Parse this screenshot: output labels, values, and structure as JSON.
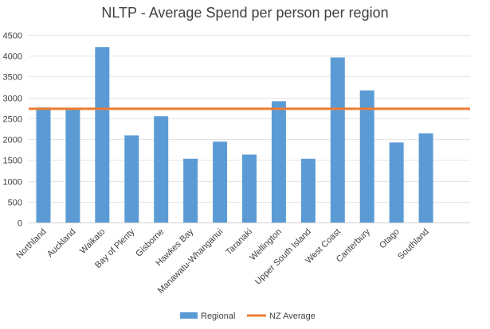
{
  "chart_data": {
    "type": "bar",
    "title": "NLTP - Average Spend per person per region",
    "categories": [
      "Northland",
      "Auckland",
      "Waikato",
      "Bay of Plenty",
      "Gisborne",
      "Hawkes Bay",
      "Manawatu-Whanganui",
      "Taranaki",
      "Wellington",
      "Upper South Island",
      "West Coast",
      "Canterbury",
      "Otago",
      "Southland"
    ],
    "series": [
      {
        "name": "Regional",
        "type": "bar",
        "color": "#5B9BD5",
        "values": [
          2760,
          2740,
          4210,
          2090,
          2550,
          1530,
          1940,
          1630,
          2910,
          1530,
          3960,
          3170,
          1920,
          2140
        ]
      },
      {
        "name": "NZ Average",
        "type": "line",
        "color": "#ED7D31",
        "values": [
          2730,
          2730,
          2730,
          2730,
          2730,
          2730,
          2730,
          2730,
          2730,
          2730,
          2730,
          2730,
          2730,
          2730
        ]
      }
    ],
    "ylim": [
      0,
      4500
    ],
    "yticks": [
      0,
      500,
      1000,
      1500,
      2000,
      2500,
      3000,
      3500,
      4000,
      4500
    ],
    "grid": true,
    "legend_position": "bottom"
  }
}
